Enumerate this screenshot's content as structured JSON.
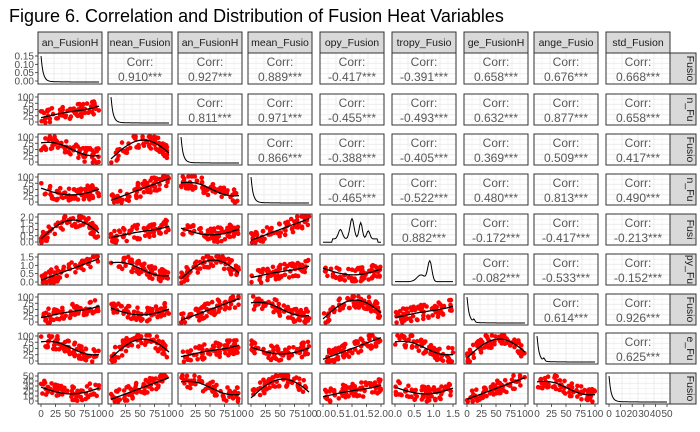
{
  "title": "Figure 6. Correlation and Distribution of Fusion Heat Variables",
  "colors": {
    "point": "#ff0000",
    "line": "#000000",
    "strip_fill": "#d9d9d9",
    "panel_border": "#333333",
    "grid": "#ebebeb",
    "corr_text": "#595959"
  },
  "chart_data": {
    "type": "scatter",
    "kind": "pairs-matrix",
    "lower": "scatter with loess smooth",
    "diag": "density",
    "upper": "correlation",
    "variables": [
      {
        "strip": "an_FusionH",
        "side": "Fusio",
        "yticks": [
          "0.15",
          "0.10",
          "0.05",
          "0.00"
        ],
        "xticks": [
          "0",
          "25",
          "50",
          "75",
          "100"
        ]
      },
      {
        "strip": "nean_Fusion",
        "side": "n_Fu",
        "yticks": [
          "100",
          "75",
          "50",
          "25",
          "0"
        ],
        "xticks": [
          "0",
          "25",
          "50",
          "75",
          "100"
        ]
      },
      {
        "strip": "an_FusionH",
        "side": "Fusio",
        "yticks": [
          "100",
          "75",
          "50",
          "25",
          "0"
        ],
        "xticks": [
          "0",
          "25",
          "50",
          "75",
          "100"
        ]
      },
      {
        "strip": "mean_Fusio",
        "side": "n_Fu",
        "yticks": [
          "100",
          "75",
          "50",
          "25",
          "0"
        ],
        "xticks": [
          "0",
          "25",
          "50",
          "75",
          "100"
        ]
      },
      {
        "strip": "opy_Fusion",
        "side": "Fusi",
        "yticks": [
          "2.0",
          "1.5",
          "1.0",
          "0.5",
          "0.0"
        ],
        "xticks": [
          "0.0",
          "0.5",
          "1.0",
          "1.5",
          "2.0"
        ]
      },
      {
        "strip": "tropy_Fusio",
        "side": "py_Fu",
        "yticks": [
          "1.5",
          "1.0",
          "0.5",
          "0.0"
        ],
        "xticks": [
          "0.0",
          "0.5",
          "1.0",
          "1.5"
        ]
      },
      {
        "strip": "ge_FusionH",
        "side": "Fusio",
        "yticks": [
          "100",
          "75",
          "50",
          "25",
          "0"
        ],
        "xticks": [
          "0",
          "25",
          "50",
          "75",
          "100"
        ]
      },
      {
        "strip": "ange_Fusio",
        "side": "e_Fu",
        "yticks": [
          "100",
          "75",
          "50",
          "25",
          "0"
        ],
        "xticks": [
          "0",
          "25",
          "50",
          "75",
          "100"
        ]
      },
      {
        "strip": "std_Fusion",
        "side": "Fusio",
        "yticks": [
          "50",
          "40",
          "30",
          "20",
          "10",
          "0"
        ],
        "xticks": [
          "0",
          "10",
          "20",
          "30",
          "40",
          "50"
        ]
      }
    ],
    "corr_label": "Corr:",
    "correlations": [
      {
        "row": 1,
        "col": 2,
        "value": "0.910***"
      },
      {
        "row": 1,
        "col": 3,
        "value": "0.927***"
      },
      {
        "row": 1,
        "col": 4,
        "value": "0.889***"
      },
      {
        "row": 1,
        "col": 5,
        "value": "-0.417***"
      },
      {
        "row": 1,
        "col": 6,
        "value": "-0.391***"
      },
      {
        "row": 1,
        "col": 7,
        "value": "0.658***"
      },
      {
        "row": 1,
        "col": 8,
        "value": "0.676***"
      },
      {
        "row": 1,
        "col": 9,
        "value": "0.668***"
      },
      {
        "row": 2,
        "col": 3,
        "value": "0.811***"
      },
      {
        "row": 2,
        "col": 4,
        "value": "0.971***"
      },
      {
        "row": 2,
        "col": 5,
        "value": "-0.455***"
      },
      {
        "row": 2,
        "col": 6,
        "value": "-0.493***"
      },
      {
        "row": 2,
        "col": 7,
        "value": "0.632***"
      },
      {
        "row": 2,
        "col": 8,
        "value": "0.877***"
      },
      {
        "row": 2,
        "col": 9,
        "value": "0.658***"
      },
      {
        "row": 3,
        "col": 4,
        "value": "0.866***"
      },
      {
        "row": 3,
        "col": 5,
        "value": "-0.388***"
      },
      {
        "row": 3,
        "col": 6,
        "value": "-0.405***"
      },
      {
        "row": 3,
        "col": 7,
        "value": "0.369***"
      },
      {
        "row": 3,
        "col": 8,
        "value": "0.509***"
      },
      {
        "row": 3,
        "col": 9,
        "value": "0.417***"
      },
      {
        "row": 4,
        "col": 5,
        "value": "-0.465***"
      },
      {
        "row": 4,
        "col": 6,
        "value": "-0.522***"
      },
      {
        "row": 4,
        "col": 7,
        "value": "0.480***"
      },
      {
        "row": 4,
        "col": 8,
        "value": "0.813***"
      },
      {
        "row": 4,
        "col": 9,
        "value": "0.490***"
      },
      {
        "row": 5,
        "col": 6,
        "value": "0.882***"
      },
      {
        "row": 5,
        "col": 7,
        "value": "-0.172***"
      },
      {
        "row": 5,
        "col": 8,
        "value": "-0.417***"
      },
      {
        "row": 5,
        "col": 9,
        "value": "-0.213***"
      },
      {
        "row": 6,
        "col": 7,
        "value": "-0.082***"
      },
      {
        "row": 6,
        "col": 8,
        "value": "-0.533***"
      },
      {
        "row": 6,
        "col": 9,
        "value": "-0.152***"
      },
      {
        "row": 7,
        "col": 8,
        "value": "0.614***"
      },
      {
        "row": 7,
        "col": 9,
        "value": "0.926***"
      },
      {
        "row": 8,
        "col": 9,
        "value": "0.625***"
      }
    ],
    "grid": true,
    "legend": "none"
  }
}
